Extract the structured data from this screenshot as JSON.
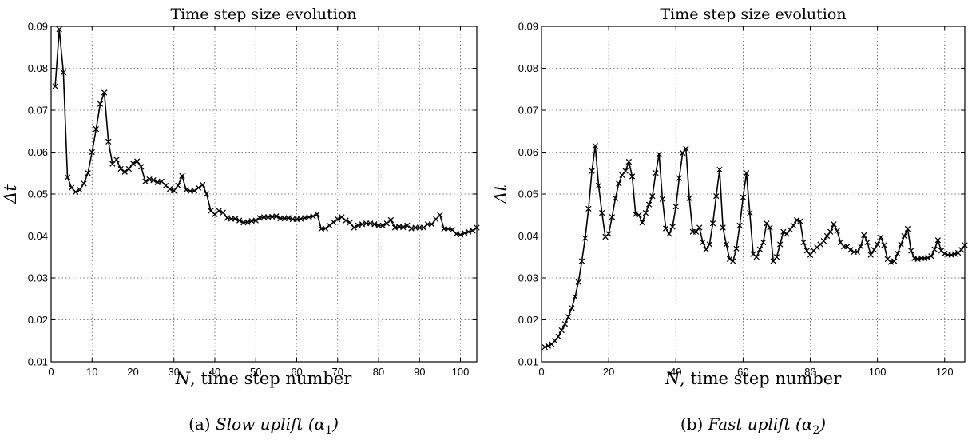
{
  "chart_data": [
    {
      "type": "line",
      "title": "Time step size evolution",
      "xlabel_var": "N",
      "xlabel_text": ", time step number",
      "ylabel": "Δt",
      "caption_prefix": "(a) ",
      "caption_text": "Slow uplift (α",
      "caption_sub": "1",
      "caption_suffix": ")",
      "xlim": [
        0,
        104
      ],
      "ylim": [
        0.01,
        0.09
      ],
      "xticks": [
        0,
        10,
        20,
        30,
        40,
        50,
        60,
        70,
        80,
        90,
        100
      ],
      "yticks": [
        0.01,
        0.02,
        0.03,
        0.04,
        0.05,
        0.06,
        0.07,
        0.08,
        0.09
      ],
      "grid": true,
      "marker": "x",
      "x_start": 1,
      "values": [
        0.0757,
        0.0893,
        0.079,
        0.054,
        0.0515,
        0.0505,
        0.051,
        0.0525,
        0.055,
        0.06,
        0.0655,
        0.0715,
        0.0742,
        0.0625,
        0.0572,
        0.0582,
        0.056,
        0.0553,
        0.056,
        0.0573,
        0.0578,
        0.0565,
        0.053,
        0.0535,
        0.0533,
        0.0528,
        0.053,
        0.052,
        0.0512,
        0.0508,
        0.052,
        0.0543,
        0.051,
        0.0507,
        0.0508,
        0.0515,
        0.0522,
        0.05,
        0.046,
        0.0452,
        0.046,
        0.0456,
        0.0443,
        0.0441,
        0.0441,
        0.0437,
        0.0432,
        0.0433,
        0.0436,
        0.0437,
        0.0443,
        0.0445,
        0.0445,
        0.0446,
        0.0447,
        0.0442,
        0.0442,
        0.0443,
        0.044,
        0.044,
        0.0441,
        0.0443,
        0.0445,
        0.0447,
        0.0452,
        0.0417,
        0.0418,
        0.0425,
        0.0433,
        0.044,
        0.0445,
        0.0437,
        0.0432,
        0.042,
        0.0425,
        0.0428,
        0.043,
        0.043,
        0.0428,
        0.0425,
        0.0425,
        0.043,
        0.0438,
        0.042,
        0.0422,
        0.0421,
        0.0425,
        0.0418,
        0.042,
        0.042,
        0.042,
        0.0428,
        0.0428,
        0.044,
        0.045,
        0.0417,
        0.0417,
        0.0415,
        0.0405,
        0.0403,
        0.0407,
        0.041,
        0.0413,
        0.042
      ]
    },
    {
      "type": "line",
      "title": "Time step size evolution",
      "xlabel_var": "N",
      "xlabel_text": ", time step number",
      "ylabel": "Δt",
      "caption_prefix": "(b) ",
      "caption_text": "Fast uplift (α",
      "caption_sub": "2",
      "caption_suffix": ")",
      "xlim": [
        0,
        126
      ],
      "ylim": [
        0.01,
        0.09
      ],
      "xticks": [
        0,
        20,
        40,
        60,
        80,
        100,
        120
      ],
      "yticks": [
        0.01,
        0.02,
        0.03,
        0.04,
        0.05,
        0.06,
        0.07,
        0.08,
        0.09
      ],
      "grid": true,
      "marker": "x",
      "x_start": 1,
      "values": [
        0.0135,
        0.0138,
        0.0142,
        0.015,
        0.016,
        0.0175,
        0.019,
        0.0207,
        0.0228,
        0.0255,
        0.029,
        0.034,
        0.0395,
        0.0465,
        0.0555,
        0.0615,
        0.052,
        0.0455,
        0.0398,
        0.0405,
        0.0445,
        0.049,
        0.0525,
        0.0545,
        0.0555,
        0.0577,
        0.0542,
        0.0452,
        0.045,
        0.0432,
        0.0455,
        0.0475,
        0.0495,
        0.055,
        0.0595,
        0.0488,
        0.0418,
        0.0405,
        0.0422,
        0.047,
        0.0538,
        0.0598,
        0.0608,
        0.049,
        0.041,
        0.041,
        0.042,
        0.0385,
        0.0368,
        0.038,
        0.043,
        0.0495,
        0.0558,
        0.042,
        0.038,
        0.0345,
        0.034,
        0.037,
        0.0425,
        0.0492,
        0.055,
        0.0455,
        0.0357,
        0.035,
        0.0368,
        0.0385,
        0.043,
        0.042,
        0.034,
        0.035,
        0.038,
        0.041,
        0.0405,
        0.0415,
        0.0425,
        0.0438,
        0.0435,
        0.0385,
        0.0365,
        0.0355,
        0.0365,
        0.0373,
        0.038,
        0.0388,
        0.04,
        0.041,
        0.0428,
        0.0412,
        0.0385,
        0.0375,
        0.0375,
        0.0367,
        0.0362,
        0.0362,
        0.0375,
        0.0402,
        0.0385,
        0.0355,
        0.0367,
        0.038,
        0.0397,
        0.0378,
        0.0345,
        0.0338,
        0.034,
        0.0358,
        0.038,
        0.04,
        0.0417,
        0.0365,
        0.0347,
        0.0345,
        0.0347,
        0.0347,
        0.0348,
        0.0352,
        0.0368,
        0.039,
        0.0365,
        0.0358,
        0.0355,
        0.0355,
        0.0357,
        0.036,
        0.0367,
        0.0378
      ]
    }
  ]
}
